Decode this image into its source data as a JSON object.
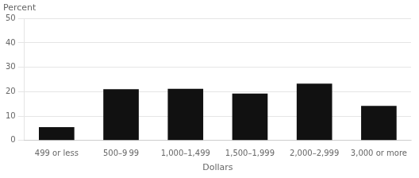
{
  "chart_data": {
    "type": "bar",
    "ylabel": "Percent",
    "xlabel": "Dollars",
    "categories": [
      "499 or less",
      "500–9 99",
      "1,000–1,499",
      "1,500–1,999",
      "2,000–2,999",
      "3,000 or more"
    ],
    "values": [
      5.5,
      21.0,
      21.2,
      19.2,
      23.3,
      14.2
    ],
    "color": "#111111",
    "ylim": [
      0,
      50
    ],
    "yticks": [
      0,
      10,
      20,
      30,
      40,
      50
    ],
    "grid": true
  }
}
